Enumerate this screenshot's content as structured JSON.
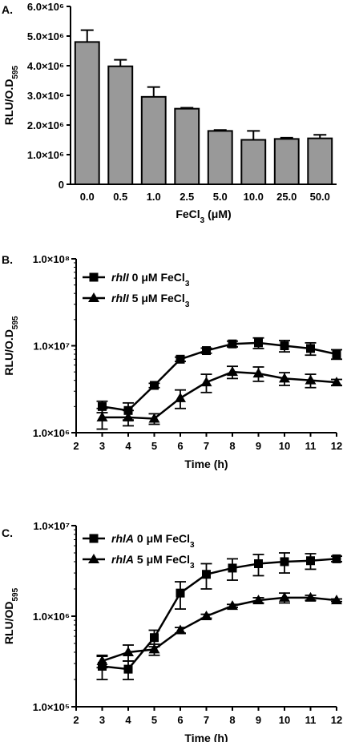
{
  "chart_data": [
    {
      "type": "bar",
      "panel_label": "A.",
      "xlabel": "FeCl3 (μM)",
      "xlabel_parts": {
        "base": "FeCl",
        "sub": "3",
        "rest": " (μM)"
      },
      "ylabel": "RLU/O.D595",
      "ylabel_parts": {
        "base": "RLU/O.D",
        "sub": "595"
      },
      "ylim": [
        0,
        6000000
      ],
      "y_ticks": [
        {
          "value": 0,
          "label": "0"
        },
        {
          "value": 1000000,
          "label": "1.0×10⁶"
        },
        {
          "value": 2000000,
          "label": "2.0×10⁶"
        },
        {
          "value": 3000000,
          "label": "3.0×10⁶"
        },
        {
          "value": 4000000,
          "label": "4.0×10⁶"
        },
        {
          "value": 5000000,
          "label": "5.0×10⁶"
        },
        {
          "value": 6000000,
          "label": "6.0×10⁶"
        }
      ],
      "categories": [
        "0.0",
        "0.5",
        "1.0",
        "2.5",
        "5.0",
        "10.0",
        "25.0",
        "50.0"
      ],
      "values": [
        4800000,
        3980000,
        2950000,
        2550000,
        1800000,
        1500000,
        1530000,
        1550000
      ],
      "errors": [
        400000,
        220000,
        330000,
        30000,
        30000,
        300000,
        40000,
        120000
      ],
      "bar_color": "#999999",
      "grid": false
    },
    {
      "type": "line",
      "panel_label": "B.",
      "xlabel": "Time (h)",
      "ylabel": "RLU/O.D595",
      "ylabel_parts": {
        "base": "RLU/O.D",
        "sub": "595"
      },
      "yscale": "log",
      "ylim": [
        1000000,
        100000000
      ],
      "y_ticks": [
        {
          "value": 1000000,
          "label": "1.0×10⁶"
        },
        {
          "value": 10000000,
          "label": "1.0×10⁷"
        },
        {
          "value": 100000000,
          "label": "1.0×10⁸"
        }
      ],
      "xlim": [
        2,
        12
      ],
      "x_ticks": [
        2,
        3,
        4,
        5,
        6,
        7,
        8,
        9,
        10,
        11,
        12
      ],
      "legend_position": "top-left",
      "series": [
        {
          "name": "rhlI 0 μM FeCl3",
          "legend": {
            "gene": "rhlI",
            "text": " 0 μM FeCl",
            "sub": "3"
          },
          "marker": "square",
          "x": [
            3,
            4,
            5,
            6,
            7,
            8,
            9,
            10,
            11,
            12
          ],
          "y": [
            2000000,
            1800000,
            3500000,
            7000000,
            8800000,
            10500000,
            10800000,
            10000000,
            9300000,
            8000000
          ],
          "err": [
            300000,
            400000,
            200000,
            400000,
            600000,
            800000,
            1500000,
            1500000,
            1500000,
            1000000
          ]
        },
        {
          "name": "rhlI 5 μM FeCl3",
          "legend": {
            "gene": "rhlI",
            "text": " 5 μM FeCl",
            "sub": "3"
          },
          "marker": "triangle",
          "x": [
            3,
            4,
            5,
            6,
            7,
            8,
            9,
            10,
            11,
            12
          ],
          "y": [
            1500000,
            1500000,
            1450000,
            2500000,
            3800000,
            5000000,
            4800000,
            4200000,
            4000000,
            3800000
          ],
          "err": [
            400000,
            300000,
            200000,
            600000,
            900000,
            800000,
            900000,
            700000,
            700000,
            300000
          ]
        }
      ]
    },
    {
      "type": "line",
      "panel_label": "C.",
      "xlabel": "Time (h)",
      "ylabel": "RLU/OD595",
      "ylabel_parts": {
        "base": "RLU/OD",
        "sub": "595"
      },
      "yscale": "log",
      "ylim": [
        100000,
        10000000
      ],
      "y_ticks": [
        {
          "value": 100000,
          "label": "1.0×10⁵"
        },
        {
          "value": 1000000,
          "label": "1.0×10⁶"
        },
        {
          "value": 10000000,
          "label": "1.0×10⁷"
        }
      ],
      "xlim": [
        2,
        12
      ],
      "x_ticks": [
        2,
        3,
        4,
        5,
        6,
        7,
        8,
        9,
        10,
        11,
        12
      ],
      "legend_position": "top-left",
      "series": [
        {
          "name": "rhlA 0 μM FeCl3",
          "legend": {
            "gene": "rhlA",
            "text": " 0 μM FeCl",
            "sub": "3"
          },
          "marker": "square",
          "x": [
            3,
            4,
            5,
            6,
            7,
            8,
            9,
            10,
            11,
            12
          ],
          "y": [
            280000,
            260000,
            580000,
            1800000,
            2900000,
            3400000,
            3800000,
            4000000,
            4100000,
            4300000
          ],
          "err": [
            80000,
            60000,
            120000,
            600000,
            900000,
            900000,
            1000000,
            1000000,
            800000,
            300000
          ]
        },
        {
          "name": "rhlA 5 μM FeCl3",
          "legend": {
            "gene": "rhlA",
            "text": " 5 μM FeCl",
            "sub": "3"
          },
          "marker": "triangle",
          "x": [
            3,
            4,
            5,
            6,
            7,
            8,
            9,
            10,
            11,
            12
          ],
          "y": [
            320000,
            400000,
            430000,
            700000,
            1000000,
            1300000,
            1500000,
            1600000,
            1600000,
            1500000
          ],
          "err": [
            50000,
            80000,
            60000,
            50000,
            50000,
            50000,
            100000,
            200000,
            100000,
            50000
          ]
        }
      ]
    }
  ]
}
